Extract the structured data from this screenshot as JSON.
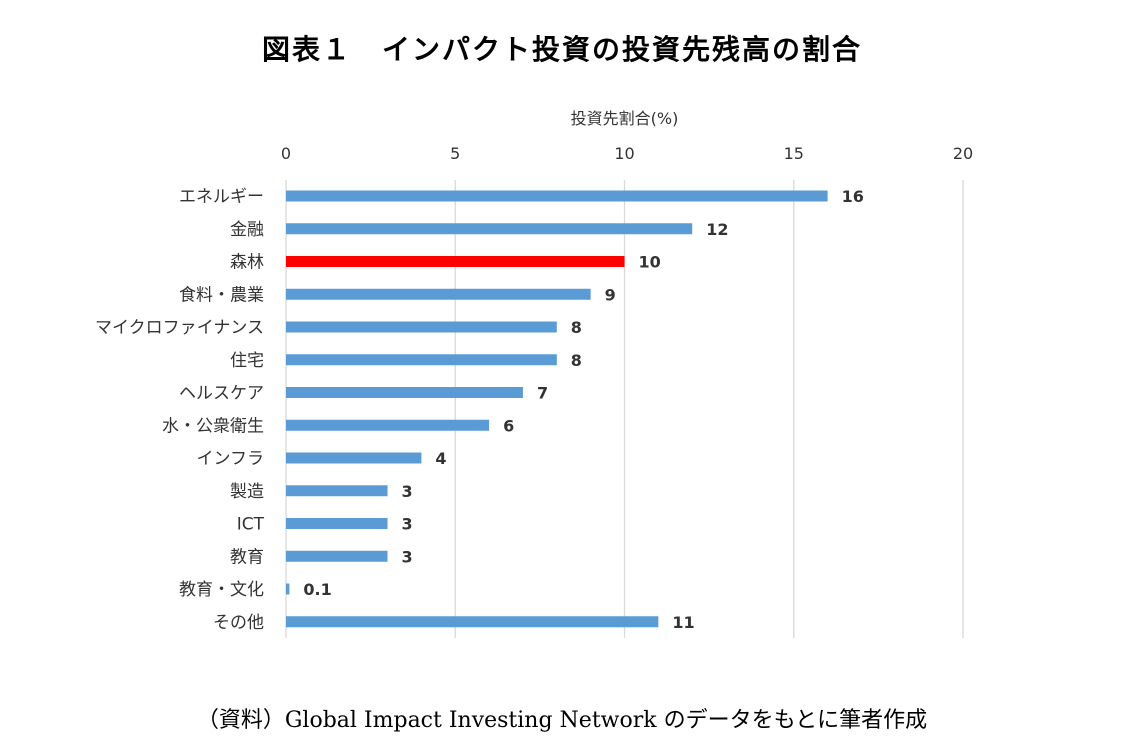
{
  "title": "図表１　インパクト投資の投資先残高の割合",
  "source": "（資料）Global Impact Investing Network のデータをもとに筆者作成",
  "colors": {
    "bar": "#5b9bd5",
    "highlight": "#ff0000",
    "grid": "#d9d9d9"
  },
  "chart_data": {
    "type": "bar",
    "orientation": "horizontal",
    "xlabel": "投資先割合(%)",
    "xlabel_position": "top",
    "xlim": [
      0,
      20
    ],
    "xticks": [
      "0",
      "5",
      "10",
      "15",
      "20"
    ],
    "categories": [
      "エネルギー",
      "金融",
      "森林",
      "食料・農業",
      "マイクロファイナンス",
      "住宅",
      "ヘルスケア",
      "水・公衆衛生",
      "インフラ",
      "製造",
      "ICT",
      "教育",
      "教育・文化",
      "その他"
    ],
    "values": [
      16,
      12,
      10,
      9,
      8,
      8,
      7,
      6,
      4,
      3,
      3,
      3,
      0.1,
      11
    ],
    "value_labels": [
      "16",
      "12",
      "10",
      "9",
      "8",
      "8",
      "7",
      "6",
      "4",
      "3",
      "3",
      "3",
      "0.1",
      "11"
    ],
    "highlight_category": "森林",
    "grid": true
  }
}
